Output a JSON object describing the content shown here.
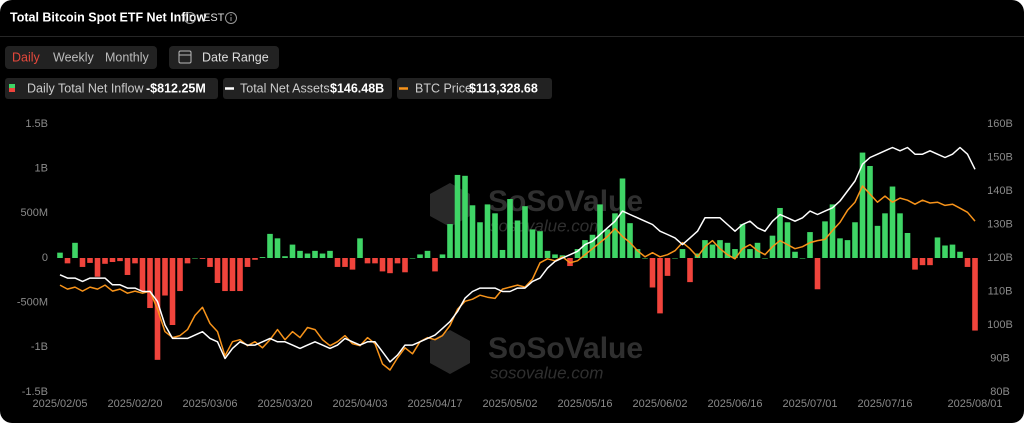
{
  "header": {
    "title": "Total Bitcoin Spot ETF Net Inflow",
    "timezone": "EST"
  },
  "tabs": [
    "Daily",
    "Weekly",
    "Monthly"
  ],
  "date_range": "Date Range",
  "watermark": {
    "brand": "SoSoValue",
    "url": "sosovalue.com"
  },
  "chart_data": {
    "type": "bar",
    "categories": [
      "2025/02/05",
      null,
      null,
      null,
      null,
      null,
      null,
      null,
      null,
      null,
      "2025/02/20",
      null,
      null,
      null,
      null,
      null,
      null,
      null,
      null,
      null,
      "2025/03/06",
      null,
      null,
      null,
      null,
      null,
      null,
      null,
      null,
      null,
      "2025/03/20",
      null,
      null,
      null,
      null,
      null,
      null,
      null,
      null,
      null,
      "2025/04/03",
      null,
      null,
      null,
      null,
      null,
      null,
      null,
      null,
      null,
      "2025/04/17",
      null,
      null,
      null,
      null,
      null,
      null,
      null,
      null,
      null,
      "2025/05/02",
      null,
      null,
      null,
      null,
      null,
      null,
      null,
      null,
      null,
      "2025/05/16",
      null,
      null,
      null,
      null,
      null,
      null,
      null,
      null,
      null,
      "2025/06/02",
      null,
      null,
      null,
      null,
      null,
      null,
      null,
      null,
      null,
      "2025/06/16",
      null,
      null,
      null,
      null,
      null,
      null,
      null,
      null,
      null,
      "2025/07/01",
      null,
      null,
      null,
      null,
      null,
      null,
      null,
      null,
      null,
      "2025/07/16",
      null,
      null,
      null,
      null,
      null,
      null,
      null,
      null,
      null,
      null,
      null,
      "2025/08/01"
    ],
    "series": [
      {
        "name": "Daily Total Net Inflow",
        "current": "-$812.25M",
        "type": "bar",
        "color": "#3fd566",
        "negative_color": "#f0443c",
        "values": [
          60,
          -60,
          170,
          -100,
          -55,
          -210,
          -65,
          -45,
          -35,
          -190,
          -60,
          -370,
          -560,
          -1140,
          -420,
          -750,
          -370,
          -60,
          0,
          -10,
          -100,
          -280,
          -370,
          -370,
          -370,
          -100,
          -20,
          10,
          270,
          220,
          20,
          150,
          80,
          50,
          80,
          50,
          80,
          -100,
          -100,
          -130,
          220,
          -60,
          -60,
          -150,
          -170,
          -60,
          -160,
          0,
          40,
          80,
          -150,
          40,
          380,
          930,
          920,
          590,
          400,
          600,
          500,
          90,
          660,
          420,
          580,
          320,
          300,
          80,
          40,
          30,
          -90,
          100,
          200,
          260,
          600,
          320,
          500,
          890,
          390,
          100,
          0,
          -330,
          -620,
          -200,
          0,
          100,
          -270,
          50,
          200,
          150,
          200,
          170,
          100,
          380,
          100,
          170,
          0,
          250,
          560,
          400,
          70,
          0,
          290,
          -350,
          410,
          600,
          220,
          200,
          400,
          1180,
          1030,
          360,
          500,
          800,
          500,
          280,
          -130,
          -80,
          -80,
          230,
          140,
          150,
          70,
          -100,
          -812.25
        ]
      },
      {
        "name": "Total Net Assets",
        "current": "$146.48B",
        "type": "line",
        "axis": "y2",
        "color": "#ffffff",
        "values": [
          115,
          114,
          114,
          113,
          114,
          114,
          114,
          112,
          112,
          111,
          111,
          110,
          110,
          107,
          100,
          96,
          96,
          96,
          97,
          98,
          96,
          95,
          90,
          93,
          95,
          94,
          94,
          95,
          96,
          95,
          95,
          94,
          93,
          94,
          95,
          94,
          93,
          94,
          96,
          95,
          94,
          95,
          95,
          92,
          89,
          91,
          94,
          94,
          95,
          96,
          97,
          99,
          101,
          104,
          108,
          110,
          111,
          111,
          111,
          110,
          110,
          111,
          111,
          113,
          114,
          117,
          119,
          120,
          121,
          122,
          124,
          125,
          127,
          129,
          131,
          134,
          133,
          132,
          131,
          130,
          128,
          127,
          126,
          124,
          126,
          128,
          132,
          132,
          132,
          130,
          128,
          130,
          131,
          129,
          128,
          131,
          133,
          132,
          131,
          132,
          134,
          133,
          134,
          135,
          137,
          140,
          143,
          148,
          150,
          151,
          152,
          153,
          152,
          153,
          151,
          151,
          152,
          151,
          150,
          151,
          153,
          151,
          146.48
        ]
      },
      {
        "name": "BTC Price",
        "current": "$113,328.68",
        "type": "line",
        "axis": "y3",
        "color": "#f7931a",
        "values": [
          97500,
          96500,
          97000,
          96000,
          97000,
          96500,
          97500,
          96000,
          96500,
          95500,
          96000,
          95500,
          96000,
          91500,
          86000,
          84500,
          85000,
          86500,
          90000,
          92000,
          88000,
          86000,
          80000,
          83500,
          84000,
          82500,
          83500,
          82000,
          84000,
          86500,
          84000,
          86000,
          84500,
          87000,
          86500,
          84000,
          82500,
          83500,
          85000,
          83000,
          82500,
          84500,
          83000,
          78000,
          76500,
          79500,
          82000,
          80500,
          83500,
          84500,
          84000,
          85000,
          87500,
          91500,
          93500,
          94000,
          95000,
          94500,
          94200,
          96500,
          97000,
          97500,
          97000,
          99000,
          103000,
          104000,
          103500,
          104500,
          103000,
          103500,
          105000,
          106500,
          108000,
          109500,
          111500,
          109500,
          108000,
          106000,
          104500,
          105500,
          104500,
          105000,
          106000,
          108000,
          106500,
          104500,
          107000,
          108500,
          106500,
          105000,
          104000,
          106500,
          107500,
          106000,
          105000,
          107000,
          108500,
          107500,
          106500,
          107000,
          108000,
          108500,
          108800,
          111000,
          113000,
          116000,
          118000,
          122000,
          120000,
          118000,
          119500,
          118000,
          119000,
          118500,
          117500,
          118500,
          117800,
          118000,
          117200,
          117500,
          116500,
          115500,
          113328.68
        ]
      }
    ],
    "ylim": [
      -1500,
      1500
    ],
    "yticks": [
      {
        "value": -1500,
        "label": "-1.5B"
      },
      {
        "value": -1000,
        "label": "-1B"
      },
      {
        "value": -500,
        "label": "-500M"
      },
      0,
      {
        "value": 500,
        "label": "500M"
      },
      {
        "value": 1000,
        "label": "1B"
      },
      {
        "value": 1500,
        "label": "1.5B"
      }
    ],
    "y2lim": [
      80,
      160
    ],
    "y2ticks": [
      {
        "value": 80,
        "label": "80B"
      },
      {
        "value": 90,
        "label": "90B"
      },
      {
        "value": 100,
        "label": "100B"
      },
      {
        "value": 110,
        "label": "110B"
      },
      {
        "value": 120,
        "label": "120B"
      },
      {
        "value": 130,
        "label": "130B"
      },
      {
        "value": 140,
        "label": "140B"
      },
      {
        "value": 150,
        "label": "150B"
      },
      {
        "value": 160,
        "label": "160B"
      }
    ],
    "grid": false
  }
}
